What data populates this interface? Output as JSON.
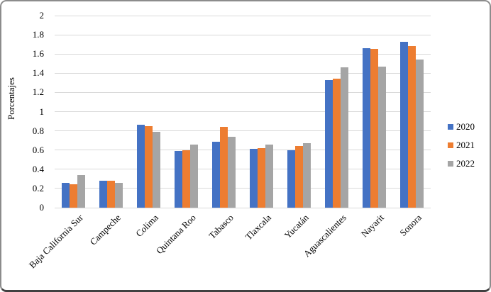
{
  "window": {
    "background": "#ffffff",
    "border_color": "#8c8c8c",
    "border_bottom_color": "#404040"
  },
  "chart_data": {
    "type": "bar",
    "title": "",
    "xlabel": "",
    "ylabel": "Porcentajes",
    "ylim": [
      0,
      2
    ],
    "ytick_step": 0.2,
    "ytick_labels": [
      "0",
      "0.2",
      "0.4",
      "0.6",
      "0.8",
      "1",
      "1.2",
      "1.4",
      "1.6",
      "1.8",
      "2"
    ],
    "grid": true,
    "gridline_color": "#d9d9d9",
    "legend_position": "right",
    "categories": [
      "Baja California Sur",
      "Campeche",
      "Colima",
      "Quintana Roo",
      "Tabasco",
      "Tlaxcala",
      "Yucatán",
      "Aguascalientes",
      "Nayarit",
      "Sonora"
    ],
    "series": [
      {
        "name": "2020",
        "color": "#4472C4",
        "values": [
          0.26,
          0.28,
          0.86,
          0.59,
          0.69,
          0.61,
          0.6,
          1.33,
          1.66,
          1.73
        ]
      },
      {
        "name": "2021",
        "color": "#ED7D31",
        "values": [
          0.24,
          0.28,
          0.85,
          0.6,
          0.84,
          0.62,
          0.64,
          1.34,
          1.65,
          1.68
        ]
      },
      {
        "name": "2022",
        "color": "#A5A5A5",
        "values": [
          0.34,
          0.26,
          0.79,
          0.66,
          0.74,
          0.66,
          0.67,
          1.46,
          1.47,
          1.54
        ]
      }
    ]
  }
}
